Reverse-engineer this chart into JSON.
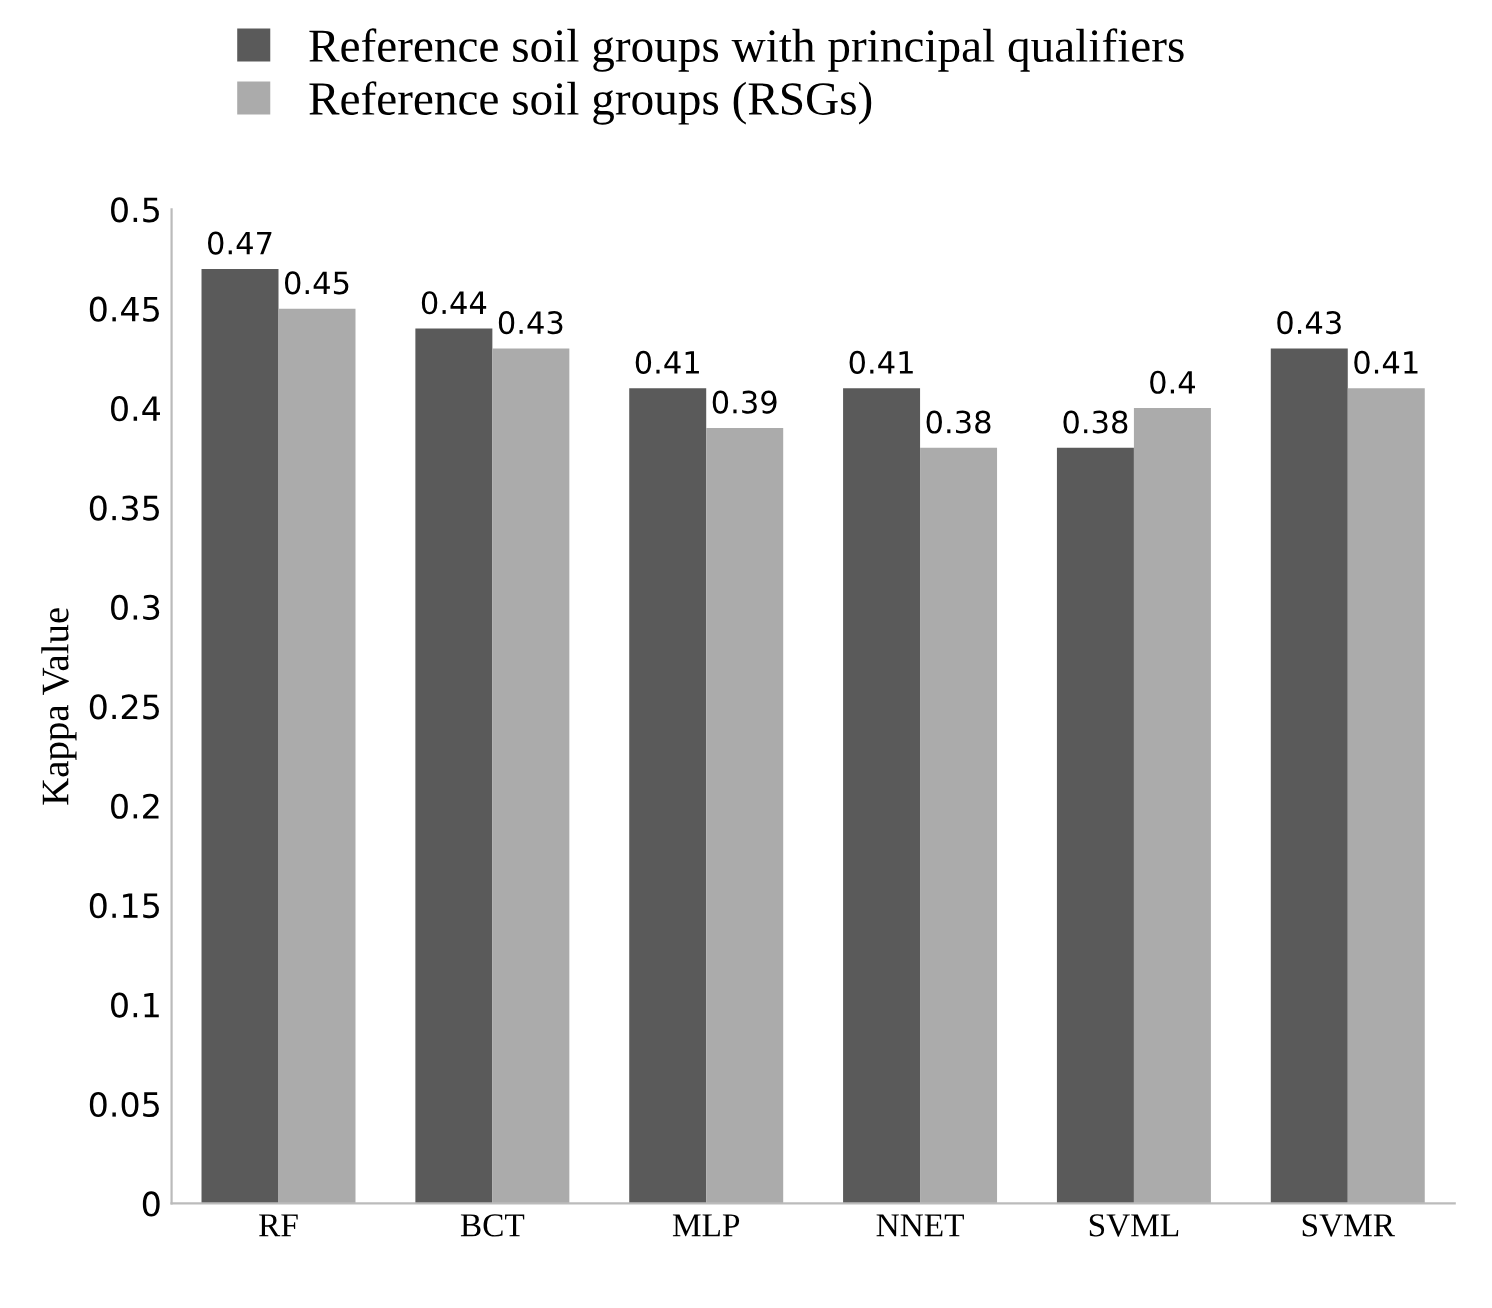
{
  "chart_data": {
    "type": "bar",
    "ylabel": "Kappa Value",
    "categories": [
      "RF",
      "BCT",
      "MLP",
      "NNET",
      "SVML",
      "SVMR"
    ],
    "series": [
      {
        "name": "Reference soil groups with principal qualifiers",
        "color": "#5a5a5a",
        "values": [
          0.47,
          0.44,
          0.41,
          0.41,
          0.38,
          0.43
        ]
      },
      {
        "name": "Reference soil groups (RSGs)",
        "color": "#ababab",
        "values": [
          0.45,
          0.43,
          0.39,
          0.38,
          0.4,
          0.41
        ]
      }
    ],
    "ylim": [
      0,
      0.5
    ],
    "yticks": [
      0,
      0.05,
      0.1,
      0.15,
      0.2,
      0.25,
      0.3,
      0.35,
      0.4,
      0.45,
      0.5
    ],
    "data_labels": true,
    "grid": false,
    "legend": "top left"
  }
}
